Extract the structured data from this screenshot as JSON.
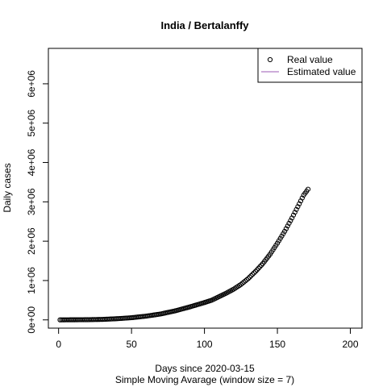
{
  "chart_data": {
    "type": "scatter",
    "title": "India / Bertalanffy",
    "xlabel": "Days since 2020-03-15",
    "subtitle": "Simple Moving Avarage (window size = 7)",
    "ylabel": "Daily cases",
    "xlim": [
      -7,
      208
    ],
    "ylim": [
      -210000,
      6900000
    ],
    "x_ticks": [
      0,
      50,
      100,
      150,
      200
    ],
    "x_tick_labels": [
      "0",
      "50",
      "100",
      "150",
      "200"
    ],
    "y_ticks": [
      0,
      1000000,
      2000000,
      3000000,
      4000000,
      5000000,
      6000000
    ],
    "y_tick_labels": [
      "0e+00",
      "1e+06",
      "2e+06",
      "3e+06",
      "4e+06",
      "5e+06",
      "6e+06"
    ],
    "grid": false,
    "legend_position": "top-right",
    "legend": [
      {
        "label": "Real value",
        "marker": "circle-open",
        "color": "#000000"
      },
      {
        "label": "Estimated value",
        "marker": "line",
        "color": "#9b59b6"
      }
    ],
    "series": [
      {
        "name": "Real value",
        "style": "points",
        "color": "#000000",
        "x_start": 1,
        "x_end": 171,
        "points": [
          [
            1,
            0
          ],
          [
            20,
            5000
          ],
          [
            30,
            12000
          ],
          [
            40,
            30000
          ],
          [
            50,
            55000
          ],
          [
            60,
            95000
          ],
          [
            70,
            150000
          ],
          [
            80,
            230000
          ],
          [
            90,
            330000
          ],
          [
            100,
            440000
          ],
          [
            105,
            500000
          ],
          [
            110,
            590000
          ],
          [
            115,
            680000
          ],
          [
            120,
            780000
          ],
          [
            125,
            900000
          ],
          [
            130,
            1050000
          ],
          [
            135,
            1230000
          ],
          [
            140,
            1430000
          ],
          [
            145,
            1670000
          ],
          [
            150,
            1950000
          ],
          [
            155,
            2250000
          ],
          [
            160,
            2590000
          ],
          [
            165,
            2950000
          ],
          [
            168,
            3170000
          ],
          [
            171,
            3320000
          ]
        ]
      },
      {
        "name": "Estimated value",
        "style": "line",
        "color": "#9b59b6",
        "points": []
      }
    ]
  }
}
